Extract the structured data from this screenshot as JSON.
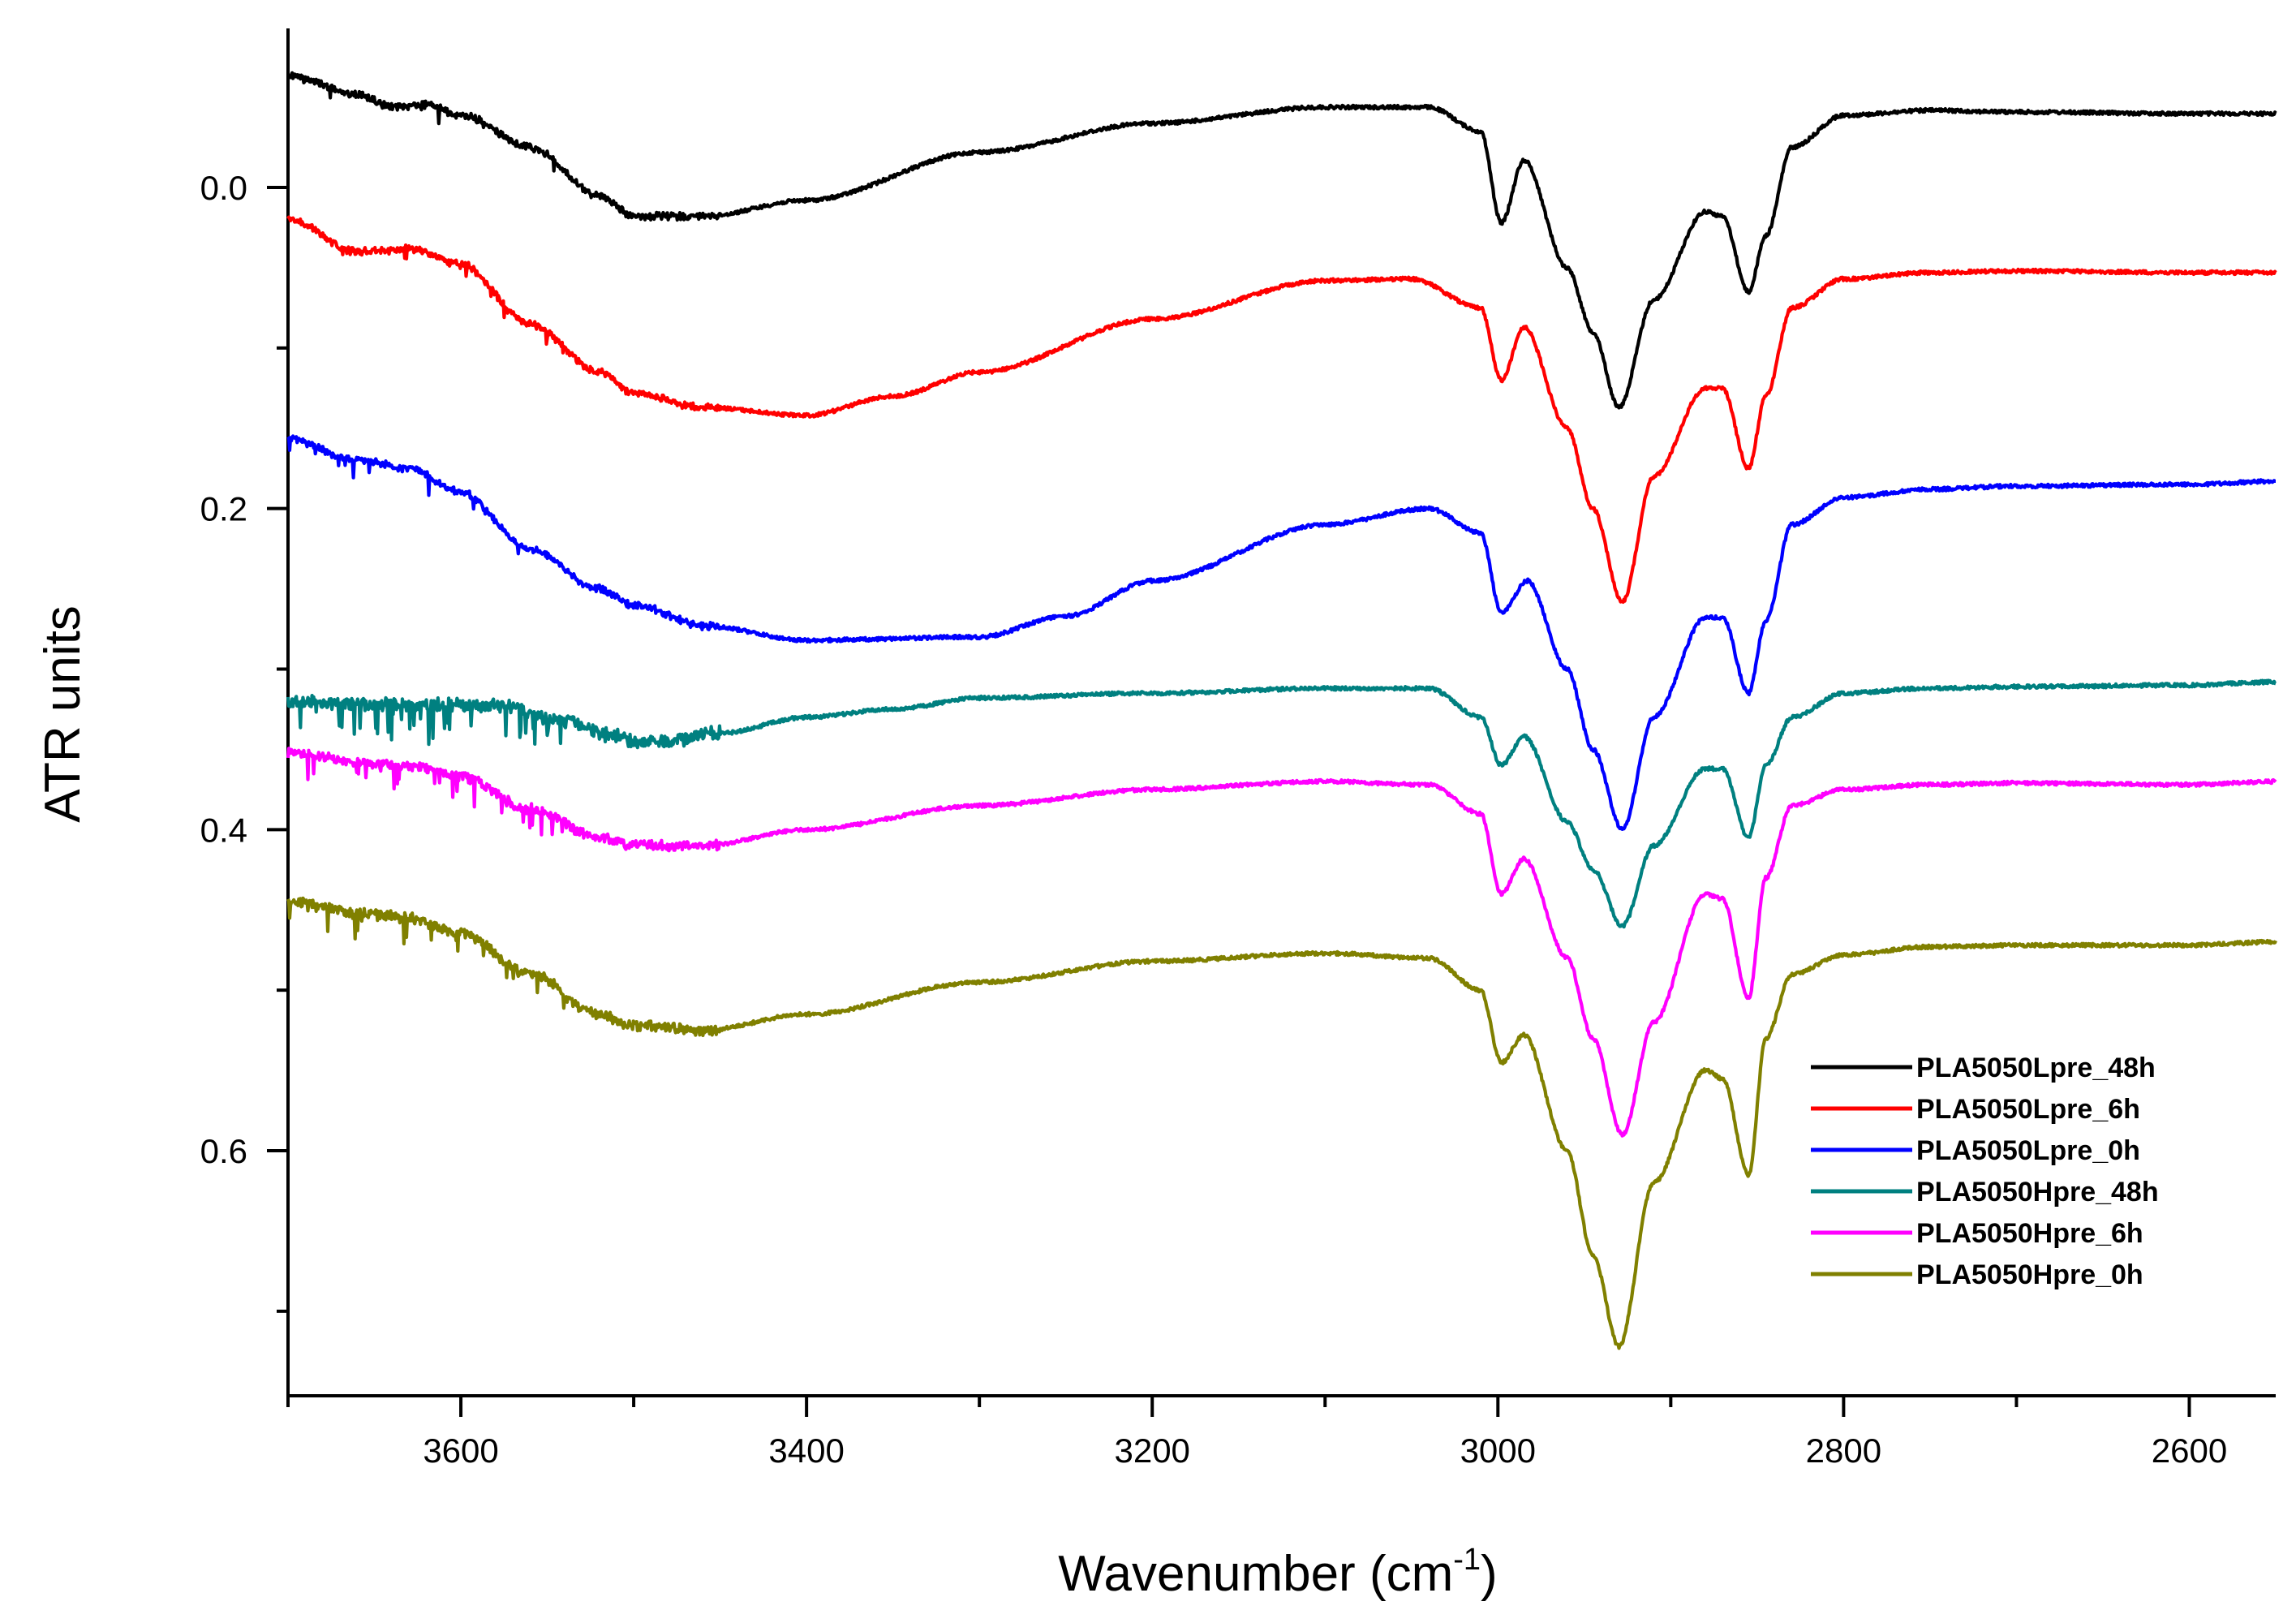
{
  "chart_data": {
    "type": "line",
    "title": "",
    "xlabel": "Wavenumber",
    "xlabel_unit_base": "(cm",
    "xlabel_unit_exp": "-1",
    "xlabel_unit_close": ")",
    "ylabel": "ATR units",
    "xlim": [
      3700,
      2550
    ],
    "ylim": [
      -0.1,
      0.75
    ],
    "y_inverted": true,
    "x_ticks": [
      3600,
      3400,
      3200,
      3000,
      2800,
      2600
    ],
    "x_tick_labels": [
      "3600",
      "3400",
      "3200",
      "3000",
      "2800",
      "2600"
    ],
    "y_ticks": [
      0.0,
      0.2,
      0.4,
      0.6
    ],
    "y_tick_labels": [
      "0.0",
      "0.2",
      "0.4",
      "0.6"
    ],
    "legend_position": "bottom-right",
    "series": [
      {
        "name": "PLA5050Lpre_48h",
        "color": "#000000",
        "noise": 0.8,
        "x": [
          3700,
          3660,
          3640,
          3620,
          3600,
          3560,
          3520,
          3500,
          3460,
          3400,
          3300,
          3200,
          3100,
          3040,
          3010,
          2998,
          2985,
          2960,
          2945,
          2930,
          2910,
          2880,
          2870,
          2855,
          2845,
          2830,
          2800,
          2750,
          2700,
          2600,
          2550
        ],
        "y": [
          -0.07,
          -0.058,
          -0.05,
          -0.052,
          -0.045,
          -0.025,
          0.005,
          0.018,
          0.018,
          0.008,
          -0.022,
          -0.04,
          -0.05,
          -0.05,
          -0.035,
          0.022,
          -0.017,
          0.05,
          0.09,
          0.137,
          0.07,
          0.015,
          0.018,
          0.065,
          0.03,
          -0.025,
          -0.045,
          -0.048,
          -0.047,
          -0.046,
          -0.046
        ]
      },
      {
        "name": "PLA5050Lpre_6h",
        "color": "#ff0000",
        "noise": 0.8,
        "x": [
          3700,
          3660,
          3630,
          3600,
          3560,
          3520,
          3500,
          3460,
          3400,
          3350,
          3300,
          3200,
          3100,
          3050,
          3010,
          2998,
          2985,
          2960,
          2945,
          2928,
          2910,
          2880,
          2870,
          2855,
          2845,
          2830,
          2800,
          2750,
          2700,
          2600,
          2550
        ],
        "y": [
          0.02,
          0.04,
          0.038,
          0.048,
          0.085,
          0.115,
          0.128,
          0.137,
          0.142,
          0.13,
          0.115,
          0.082,
          0.058,
          0.057,
          0.075,
          0.12,
          0.087,
          0.15,
          0.2,
          0.258,
          0.18,
          0.125,
          0.125,
          0.175,
          0.13,
          0.075,
          0.057,
          0.053,
          0.052,
          0.053,
          0.053
        ]
      },
      {
        "name": "PLA5050Lpre_0h",
        "color": "#0000ff",
        "noise": 0.8,
        "x": [
          3700,
          3660,
          3630,
          3600,
          3560,
          3520,
          3500,
          3460,
          3400,
          3300,
          3250,
          3200,
          3100,
          3040,
          3010,
          2998,
          2983,
          2960,
          2945,
          2928,
          2910,
          2880,
          2870,
          2855,
          2845,
          2830,
          2800,
          2750,
          2700,
          2600,
          2550
        ],
        "y": [
          0.157,
          0.17,
          0.175,
          0.19,
          0.225,
          0.25,
          0.26,
          0.273,
          0.282,
          0.28,
          0.267,
          0.245,
          0.21,
          0.2,
          0.215,
          0.265,
          0.245,
          0.3,
          0.35,
          0.4,
          0.33,
          0.268,
          0.268,
          0.315,
          0.27,
          0.21,
          0.193,
          0.188,
          0.186,
          0.185,
          0.183
        ]
      },
      {
        "name": "PLA5050Hpre_48h",
        "color": "#008080",
        "noise": 1.9,
        "x": [
          3700,
          3660,
          3620,
          3580,
          3540,
          3510,
          3500,
          3480,
          3450,
          3400,
          3350,
          3300,
          3200,
          3100,
          3040,
          3010,
          2998,
          2985,
          2960,
          2945,
          2928,
          2910,
          2880,
          2870,
          2855,
          2845,
          2830,
          2800,
          2750,
          2700,
          2600,
          2550
        ],
        "y": [
          0.32,
          0.322,
          0.322,
          0.323,
          0.332,
          0.342,
          0.345,
          0.345,
          0.34,
          0.33,
          0.325,
          0.318,
          0.315,
          0.312,
          0.312,
          0.33,
          0.36,
          0.342,
          0.395,
          0.425,
          0.46,
          0.41,
          0.362,
          0.362,
          0.405,
          0.36,
          0.33,
          0.315,
          0.312,
          0.311,
          0.31,
          0.308
        ]
      },
      {
        "name": "PLA5050Hpre_6h",
        "color": "#ff00ff",
        "noise": 1.3,
        "x": [
          3700,
          3660,
          3630,
          3600,
          3560,
          3520,
          3500,
          3460,
          3400,
          3300,
          3200,
          3100,
          3040,
          3010,
          2998,
          2985,
          2960,
          2945,
          2928,
          2910,
          2880,
          2870,
          2855,
          2845,
          2830,
          2800,
          2750,
          2700,
          2600,
          2550
        ],
        "y": [
          0.352,
          0.358,
          0.36,
          0.367,
          0.387,
          0.405,
          0.41,
          0.41,
          0.4,
          0.385,
          0.375,
          0.37,
          0.372,
          0.39,
          0.44,
          0.418,
          0.48,
          0.53,
          0.59,
          0.52,
          0.44,
          0.443,
          0.505,
          0.43,
          0.385,
          0.375,
          0.372,
          0.371,
          0.372,
          0.37
        ]
      },
      {
        "name": "PLA5050Hpre_0h",
        "color": "#808000",
        "noise": 1.3,
        "x": [
          3700,
          3660,
          3630,
          3600,
          3560,
          3520,
          3500,
          3460,
          3400,
          3300,
          3200,
          3100,
          3040,
          3010,
          2998,
          2985,
          2960,
          2945,
          2930,
          2910,
          2880,
          2870,
          2855,
          2845,
          2830,
          2800,
          2750,
          2700,
          2600,
          2550
        ],
        "y": [
          0.445,
          0.452,
          0.455,
          0.465,
          0.49,
          0.515,
          0.522,
          0.525,
          0.515,
          0.495,
          0.482,
          0.477,
          0.48,
          0.5,
          0.545,
          0.528,
          0.6,
          0.665,
          0.722,
          0.62,
          0.55,
          0.555,
          0.615,
          0.53,
          0.49,
          0.478,
          0.473,
          0.472,
          0.472,
          0.47
        ]
      }
    ]
  }
}
